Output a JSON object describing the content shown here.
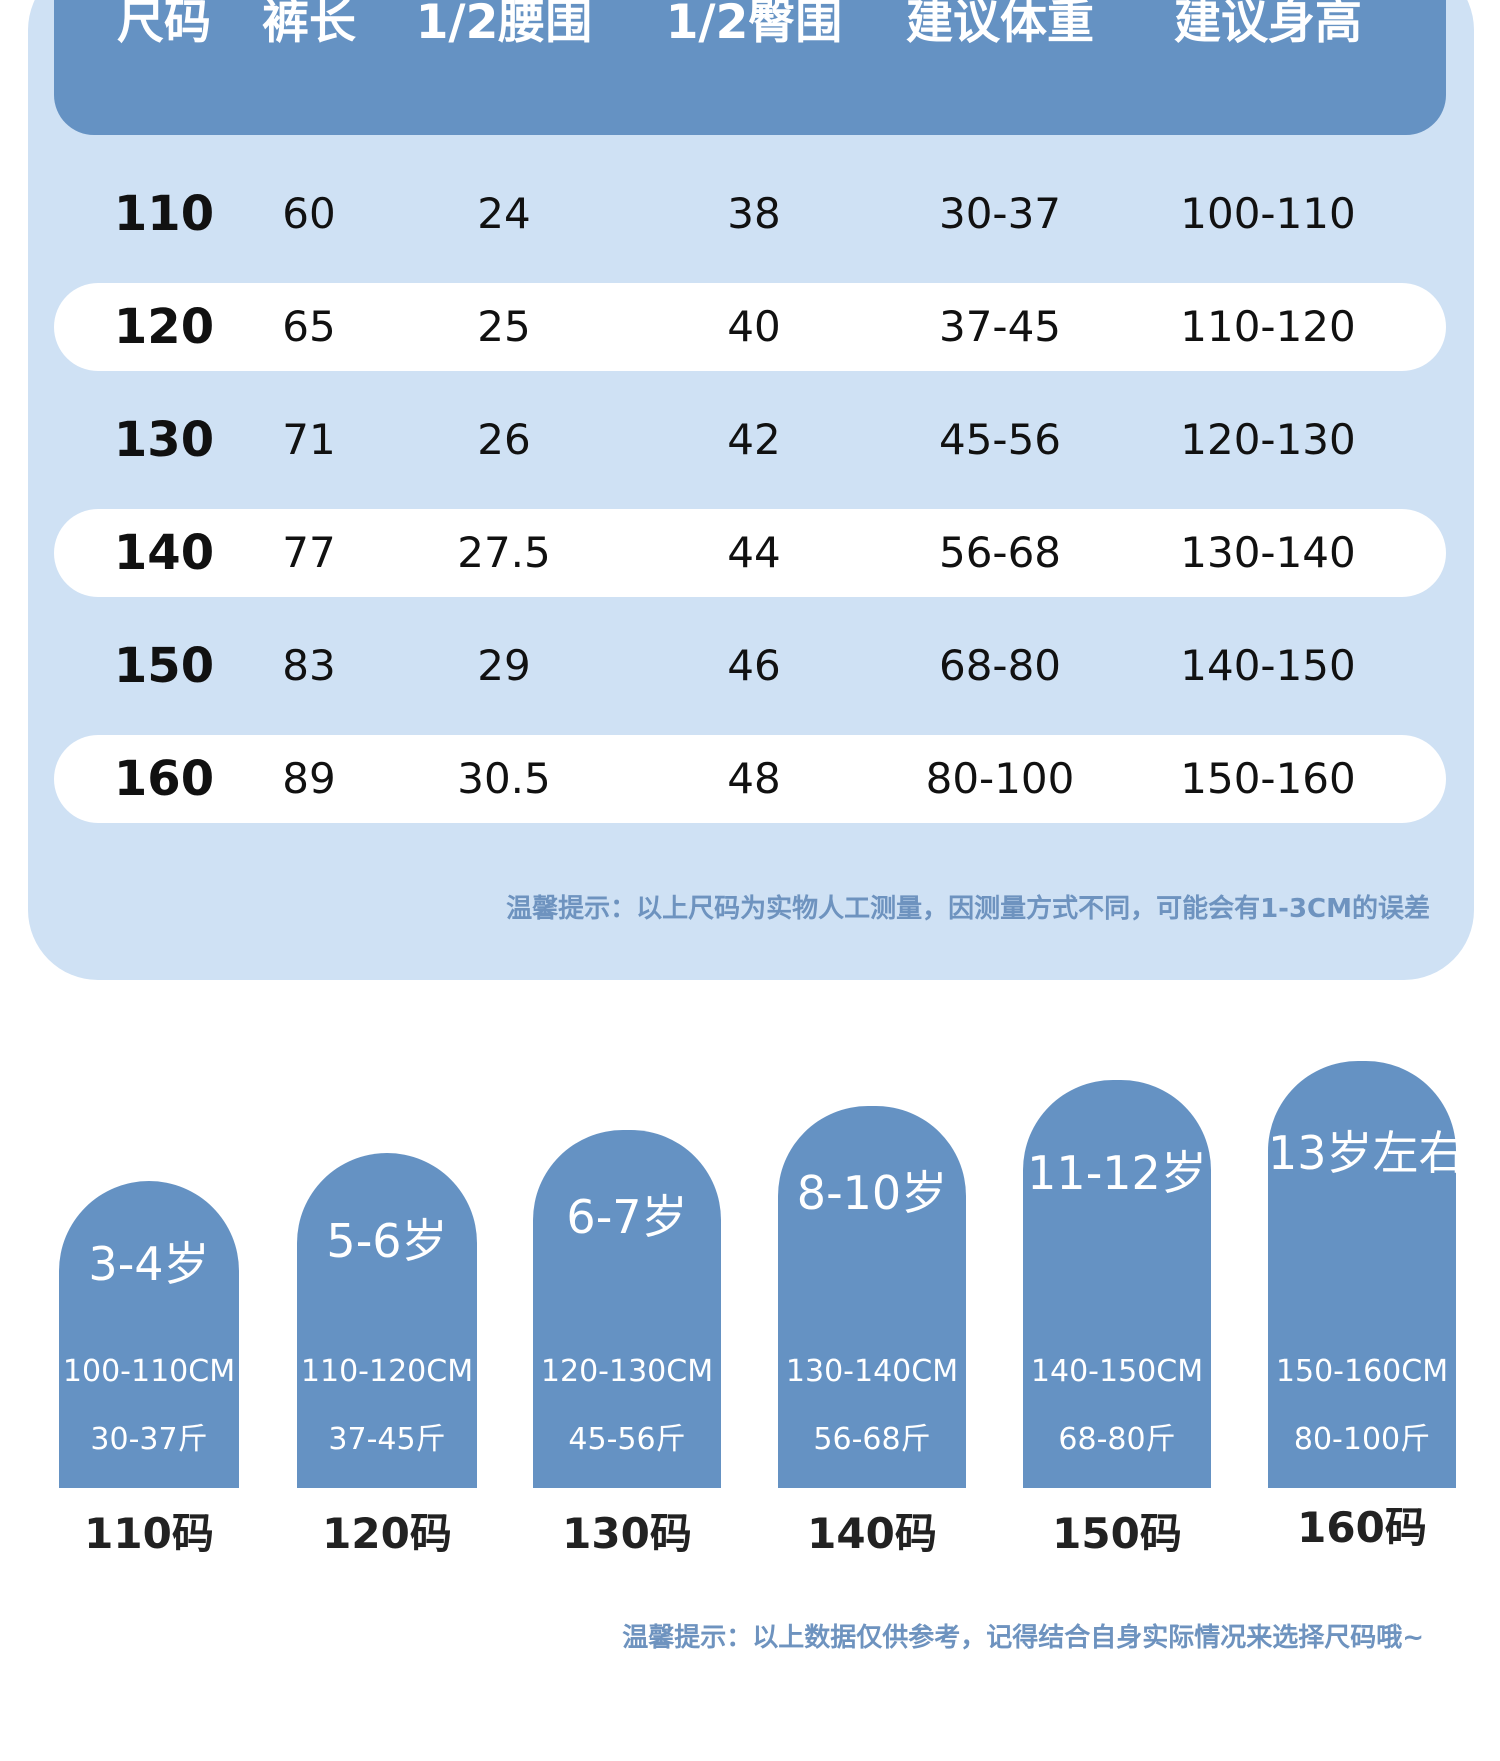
{
  "table": {
    "headers": [
      "尺码",
      "裤长",
      "1/2腰围",
      "1/2臀围",
      "建议体重",
      "建议身高"
    ],
    "rows": [
      [
        "110",
        "60",
        "24",
        "38",
        "30-37",
        "100-110"
      ],
      [
        "120",
        "65",
        "25",
        "40",
        "37-45",
        "110-120"
      ],
      [
        "130",
        "71",
        "26",
        "42",
        "45-56",
        "120-130"
      ],
      [
        "140",
        "77",
        "27.5",
        "44",
        "56-68",
        "130-140"
      ],
      [
        "150",
        "83",
        "29",
        "46",
        "68-80",
        "140-150"
      ],
      [
        "160",
        "89",
        "30.5",
        "48",
        "80-100",
        "150-160"
      ]
    ],
    "note": "温馨提示：以上尺码为实物人工测量，因测量方式不同，可能会有1-3CM的误差"
  },
  "guide": {
    "items": [
      {
        "age": "3-4岁",
        "height": "100-110CM",
        "weight": "30-37斤",
        "size": "110码"
      },
      {
        "age": "5-6岁",
        "height": "110-120CM",
        "weight": "37-45斤",
        "size": "120码"
      },
      {
        "age": "6-7岁",
        "height": "120-130CM",
        "weight": "45-56斤",
        "size": "130码"
      },
      {
        "age": "8-10岁",
        "height": "130-140CM",
        "weight": "56-68斤",
        "size": "140码"
      },
      {
        "age": "11-12岁",
        "height": "140-150CM",
        "weight": "68-80斤",
        "size": "150码"
      },
      {
        "age": "13岁左右",
        "height": "150-160CM",
        "weight": "80-100斤",
        "size": "160码"
      }
    ],
    "note": "温馨提示：以上数据仅供参考，记得结合自身实际情况来选择尺码哦~"
  },
  "colors": {
    "header_blue": "#6592c3",
    "card_light_blue": "#cfe1f4",
    "note_blue": "#6e93bf"
  }
}
